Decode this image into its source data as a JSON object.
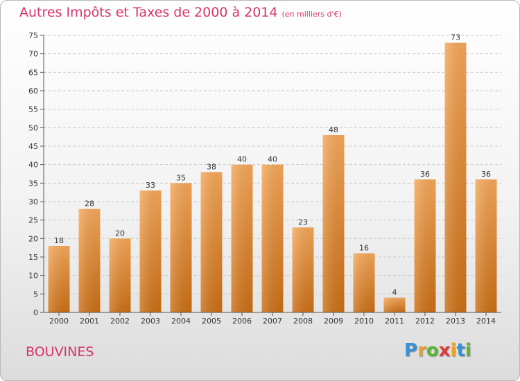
{
  "chart_data": {
    "type": "bar",
    "title": "Autres Impôts et Taxes de 2000 à 2014",
    "subtitle": "(en milliers d'€)",
    "categories": [
      "2000",
      "2001",
      "2002",
      "2003",
      "2004",
      "2005",
      "2006",
      "2007",
      "2008",
      "2009",
      "2010",
      "2011",
      "2012",
      "2013",
      "2014"
    ],
    "values": [
      18,
      28,
      20,
      33,
      35,
      38,
      40,
      40,
      23,
      48,
      16,
      4,
      36,
      73,
      36
    ],
    "ylim": [
      0,
      75
    ],
    "yticks": [
      0,
      5,
      10,
      15,
      20,
      25,
      30,
      35,
      40,
      45,
      50,
      55,
      60,
      65,
      70,
      75
    ],
    "xlabel": "",
    "ylabel": "",
    "grid": true,
    "bar_color": "#e8892e"
  },
  "commune": "BOUVINES",
  "logo": {
    "text": "Proxiti",
    "letters": [
      {
        "ch": "P",
        "color": "#3a8fd6"
      },
      {
        "ch": "r",
        "color": "#f0a020"
      },
      {
        "ch": "o",
        "color": "#5bb535"
      },
      {
        "ch": "x",
        "color": "#e03a3a"
      },
      {
        "ch": "i",
        "color": "#f0a020"
      },
      {
        "ch": "t",
        "color": "#3a8fd6"
      },
      {
        "ch": "i",
        "color": "#5bb535"
      }
    ]
  }
}
